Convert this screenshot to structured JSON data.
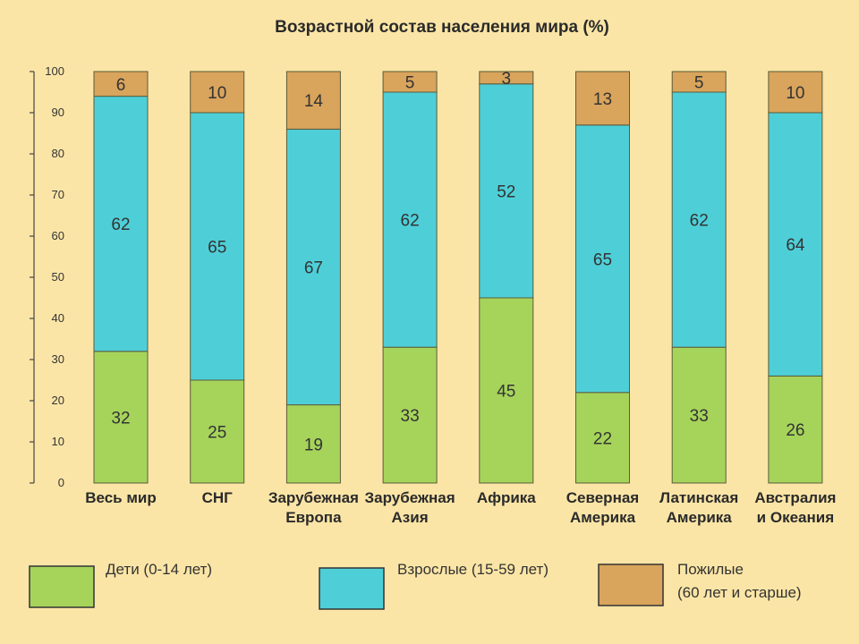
{
  "chart_data": {
    "type": "bar",
    "stacked": true,
    "title": "Возрастной состав населения мира (%)",
    "ylim": [
      0,
      100
    ],
    "yticks": [
      0,
      10,
      20,
      30,
      40,
      50,
      60,
      70,
      80,
      90,
      100
    ],
    "categories": [
      [
        "Весь мир"
      ],
      [
        "СНГ"
      ],
      [
        "Зарубежная",
        "Европа"
      ],
      [
        "Зарубежная",
        "Азия"
      ],
      [
        "Африка"
      ],
      [
        "Северная",
        "Америка"
      ],
      [
        "Латинская",
        "Америка"
      ],
      [
        "Австралия",
        "и Океания"
      ]
    ],
    "series": [
      {
        "name": [
          "Дети (0-14 лет)"
        ],
        "color": "#a6d45b",
        "values": [
          32,
          25,
          19,
          33,
          45,
          22,
          33,
          26
        ]
      },
      {
        "name": [
          "Взрослые (15-59 лет)"
        ],
        "color": "#4ecfd8",
        "values": [
          62,
          65,
          67,
          62,
          52,
          65,
          62,
          64
        ]
      },
      {
        "name": [
          "Пожилые",
          "(60 лет и старше)"
        ],
        "color": "#d9a45c",
        "values": [
          6,
          10,
          14,
          5,
          3,
          13,
          5,
          10
        ]
      }
    ],
    "legend_position": "bottom"
  }
}
